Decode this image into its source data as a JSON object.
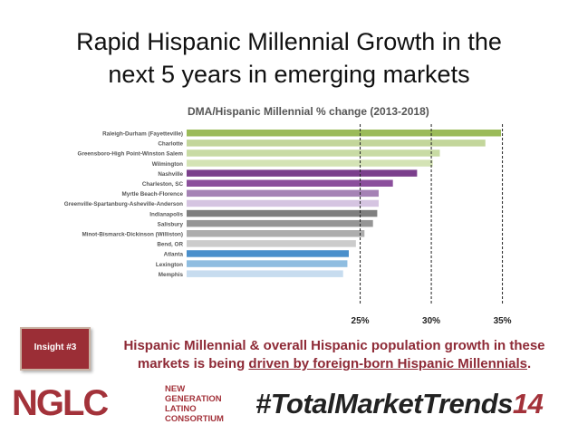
{
  "title_line1": "Rapid Hispanic Millennial Growth in the",
  "title_line2": "next 5 years in emerging markets",
  "insight": {
    "badge": "Insight #3",
    "text_part1": "Hispanic Millennial & overall Hispanic population growth in these markets is being ",
    "text_underlined": "driven by foreign-born Hispanic Millennials",
    "text_end": "."
  },
  "logo": {
    "name": "NGLC",
    "subtitle": [
      "NEW",
      "GENERATION",
      "LATINO",
      "CONSORTIUM"
    ]
  },
  "hashtag": {
    "main": "#TotalMarketTrends",
    "number": "14"
  },
  "colors": {
    "title_red": "#8e2a36",
    "badge": "#9b2e36"
  },
  "chart_data": {
    "type": "bar",
    "orientation": "horizontal",
    "title": "DMA/Hispanic Millennial % change (2013-2018)",
    "categories": [
      "Raleigh-Durham (Fayetteville)",
      "Charlotte",
      "Greensboro-High Point-Winston Salem",
      "Wilmington",
      "Nashville",
      "Charleston, SC",
      "Myrtle Beach-Florence",
      "Greenville-Spartanburg-Asheville-Anderson",
      "Indianapolis",
      "Salisbury",
      "Minot-Bismarck-Dickinson (Williston)",
      "Bend, OR",
      "Atlanta",
      "Lexington",
      "Memphis"
    ],
    "values": [
      34.9,
      33.8,
      30.6,
      30.1,
      29.0,
      27.3,
      26.3,
      26.3,
      26.2,
      25.9,
      25.3,
      24.7,
      24.2,
      24.1,
      23.8
    ],
    "colors": [
      "#9bbb59",
      "#c3d69b",
      "#c8dba4",
      "#d4e3b5",
      "#7b3f8c",
      "#8b4f9c",
      "#a582b5",
      "#d5c4e1",
      "#7f7f7f",
      "#959595",
      "#adadad",
      "#cccccc",
      "#4a8fcb",
      "#8fbde0",
      "#c7dcef"
    ],
    "ticks": [
      "25%",
      "30%",
      "35%"
    ],
    "tick_values": [
      25,
      30,
      35
    ],
    "xlim": [
      12.8,
      35.6
    ],
    "gridlines": "dashed at 25%, 30%, 35%"
  }
}
